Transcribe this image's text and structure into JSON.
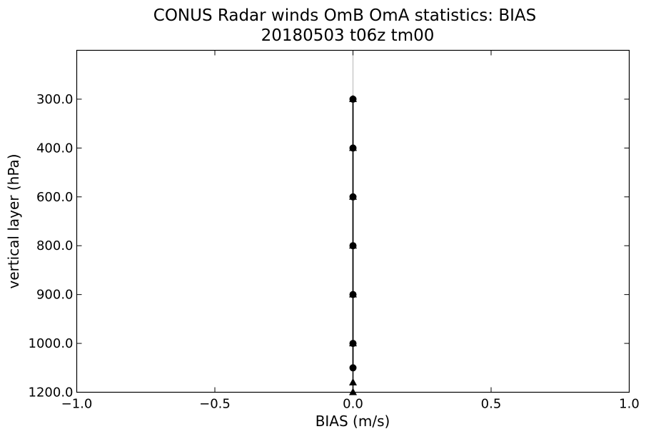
{
  "chart_data": {
    "type": "line",
    "title": "CONUS Radar winds OmB OmA statistics: BIAS",
    "subtitle": "20180503 t06z tm00",
    "xlabel": "BIAS (m/s)",
    "ylabel": "vertical layer (hPa)",
    "xlim": [
      -1.0,
      1.0
    ],
    "x_ticks": [
      -1.0,
      -0.5,
      0.0,
      0.5,
      1.0
    ],
    "x_tick_labels": [
      "−1.0",
      "−0.5",
      "0.0",
      "0.5",
      "1.0"
    ],
    "y_tick_labels": [
      "300.0",
      "400.0",
      "600.0",
      "800.0",
      "900.0",
      "1000.0",
      "1200.0"
    ],
    "y_category_positions": [
      1,
      2,
      3,
      4,
      5,
      6,
      7
    ],
    "ylim_category": [
      7,
      0
    ],
    "zero_line": true,
    "zero_line_color": "#c0c0c0",
    "series": [
      {
        "marker": "circle",
        "color": "#000000",
        "points": [
          {
            "x": 0.0,
            "y": 1
          },
          {
            "x": 0.0,
            "y": 2
          },
          {
            "x": 0.0,
            "y": 3
          },
          {
            "x": 0.0,
            "y": 4
          },
          {
            "x": 0.0,
            "y": 5
          },
          {
            "x": 0.0,
            "y": 6
          },
          {
            "x": 0.0,
            "y": 6.5
          }
        ]
      },
      {
        "marker": "triangle",
        "color": "#000000",
        "points": [
          {
            "x": 0.0,
            "y": 1
          },
          {
            "x": 0.0,
            "y": 2
          },
          {
            "x": 0.0,
            "y": 3
          },
          {
            "x": 0.0,
            "y": 4
          },
          {
            "x": 0.0,
            "y": 5
          },
          {
            "x": 0.0,
            "y": 6
          },
          {
            "x": 0.0,
            "y": 6.8
          },
          {
            "x": 0.0,
            "y": 7
          }
        ]
      }
    ]
  }
}
